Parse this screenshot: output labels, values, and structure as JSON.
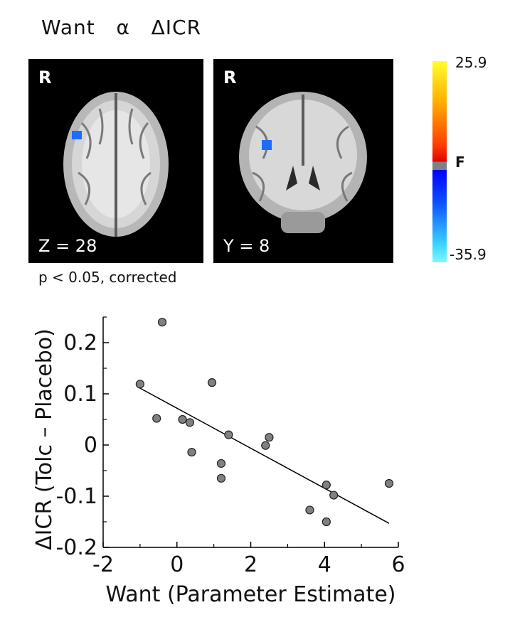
{
  "figure": {
    "title": "Want   α   ΔICR",
    "panels": [
      {
        "letter": "R",
        "coord": "Z = 28"
      },
      {
        "letter": "R",
        "coord": "Y = 8"
      }
    ],
    "colorbar": {
      "max_label": "25.9",
      "min_label": "-35.9",
      "threshold_label": "F",
      "colors": [
        "#ffff2a",
        "#ff3a00",
        "#808080",
        "#0000ff",
        "#7ff8ff"
      ]
    },
    "significance_note": "p < 0.05, corrected"
  },
  "chart_data": {
    "type": "scatter",
    "xlabel": "Want (Parameter Estimate)",
    "ylabel": "ΔICR (Tolc – Placebo)",
    "xlim": [
      -2,
      6
    ],
    "ylim": [
      -0.2,
      0.25
    ],
    "xticks": [
      "-2",
      "0",
      "2",
      "4",
      "6"
    ],
    "yticks": [
      "-0.2",
      "-0.1",
      "0",
      "0.1",
      "0.2"
    ],
    "points": [
      {
        "x": -1.0,
        "y": 0.119
      },
      {
        "x": -0.4,
        "y": 0.24
      },
      {
        "x": -0.55,
        "y": 0.052
      },
      {
        "x": 0.15,
        "y": 0.05
      },
      {
        "x": 0.35,
        "y": 0.044
      },
      {
        "x": 0.4,
        "y": -0.014
      },
      {
        "x": 0.95,
        "y": 0.122
      },
      {
        "x": 1.2,
        "y": -0.036
      },
      {
        "x": 1.2,
        "y": -0.065
      },
      {
        "x": 1.4,
        "y": 0.02
      },
      {
        "x": 2.4,
        "y": -0.001
      },
      {
        "x": 2.5,
        "y": 0.015
      },
      {
        "x": 3.6,
        "y": -0.127
      },
      {
        "x": 4.05,
        "y": -0.078
      },
      {
        "x": 4.05,
        "y": -0.15
      },
      {
        "x": 4.25,
        "y": -0.098
      },
      {
        "x": 5.75,
        "y": -0.075
      }
    ],
    "fit_line": {
      "x": [
        -1.05,
        5.75
      ],
      "y": [
        0.113,
        -0.153
      ]
    },
    "point_color": "#808080",
    "grid": false
  }
}
